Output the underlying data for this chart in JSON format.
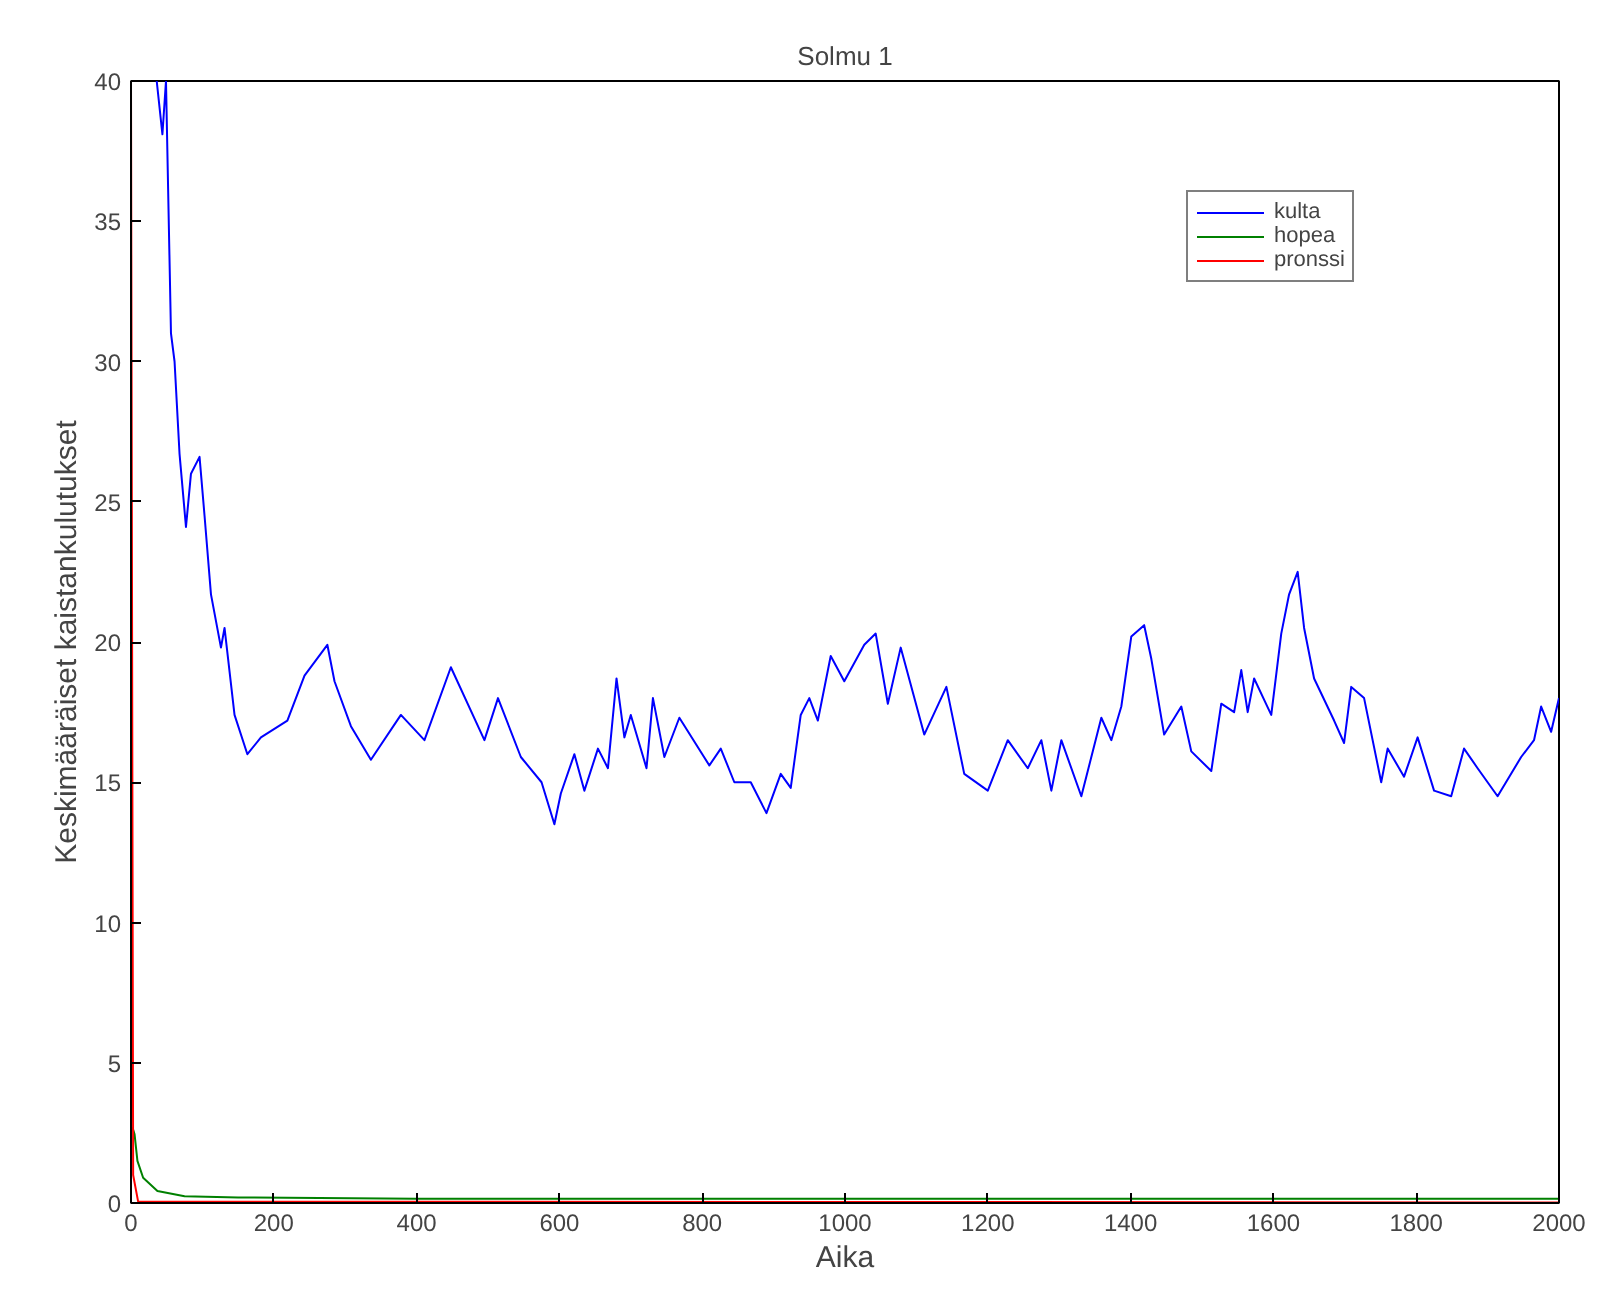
{
  "chart_data": {
    "type": "line",
    "title": "Solmu 1",
    "xlabel": "Aika",
    "ylabel": "Keskimääräiset kaistankulutukset",
    "xlim": [
      0,
      2000
    ],
    "xticks": [
      0,
      200,
      400,
      600,
      800,
      1000,
      1200,
      1400,
      1600,
      1800,
      2000
    ],
    "ylim": [
      0,
      40
    ],
    "yticks": [
      0,
      5,
      10,
      15,
      20,
      25,
      30,
      35,
      40
    ],
    "grid": false,
    "legend": "top right",
    "marker": "none",
    "line_style": "solid",
    "series": [
      {
        "name": "kulta",
        "color": "#0000ff",
        "x": [
          36,
          44,
          49,
          56,
          61,
          68,
          77,
          84,
          96,
          103,
          112,
          126,
          131,
          145,
          163,
          182,
          219,
          243,
          275,
          285,
          308,
          336,
          378,
          411,
          448,
          495,
          514,
          546,
          575,
          593,
          602,
          621,
          635,
          654,
          668,
          680,
          691,
          700,
          722,
          731,
          747,
          768,
          810,
          826,
          845,
          868,
          890,
          910,
          924,
          938,
          950,
          962,
          980,
          999,
          1027,
          1043,
          1060,
          1078,
          1111,
          1142,
          1167,
          1200,
          1228,
          1256,
          1275,
          1289,
          1303,
          1331,
          1359,
          1373,
          1387,
          1401,
          1419,
          1429,
          1447,
          1471,
          1485,
          1513,
          1527,
          1545,
          1555,
          1564,
          1573,
          1597,
          1611,
          1622,
          1634,
          1643,
          1657,
          1685,
          1699,
          1709,
          1727,
          1751,
          1760,
          1783,
          1802,
          1825,
          1849,
          1867,
          1886,
          1914,
          1947,
          1965,
          1975,
          1989,
          2000
        ],
        "values": [
          40,
          38.1,
          40,
          31.0,
          30.0,
          26.7,
          24.1,
          26.0,
          26.6,
          24.5,
          21.7,
          19.8,
          20.5,
          17.4,
          16.0,
          16.6,
          17.2,
          18.8,
          19.9,
          18.6,
          17.0,
          15.8,
          17.4,
          16.5,
          19.1,
          16.5,
          18.0,
          15.9,
          15.0,
          13.5,
          14.6,
          16.0,
          14.7,
          16.2,
          15.5,
          18.7,
          16.6,
          17.4,
          15.5,
          18.0,
          15.9,
          17.3,
          15.6,
          16.2,
          15.0,
          15.0,
          13.9,
          15.3,
          14.8,
          17.4,
          18.0,
          17.2,
          19.5,
          18.6,
          19.9,
          20.3,
          17.8,
          19.8,
          16.7,
          18.4,
          15.3,
          14.7,
          16.5,
          15.5,
          16.5,
          14.7,
          16.5,
          14.5,
          17.3,
          16.5,
          17.7,
          20.2,
          20.6,
          19.4,
          16.7,
          17.7,
          16.1,
          15.4,
          17.8,
          17.5,
          19.0,
          17.5,
          18.7,
          17.4,
          20.3,
          21.7,
          22.5,
          20.5,
          18.7,
          17.2,
          16.4,
          18.4,
          18.0,
          15.0,
          16.2,
          15.2,
          16.6,
          14.7,
          14.5,
          16.2,
          15.5,
          14.5,
          15.9,
          16.5,
          17.7,
          16.8,
          18.0
        ]
      },
      {
        "name": "hopea",
        "color": "#008000",
        "x": [
          2,
          5,
          9,
          17,
          37,
          75,
          150,
          400,
          2000
        ],
        "values": [
          2.7,
          2.45,
          1.5,
          0.9,
          0.43,
          0.24,
          0.2,
          0.15,
          0.15
        ]
      },
      {
        "name": "pronssi",
        "color": "#ff0000",
        "x": [
          0,
          3,
          10,
          2000
        ],
        "values": [
          40,
          1.0,
          0.05,
          0.02
        ]
      }
    ]
  }
}
